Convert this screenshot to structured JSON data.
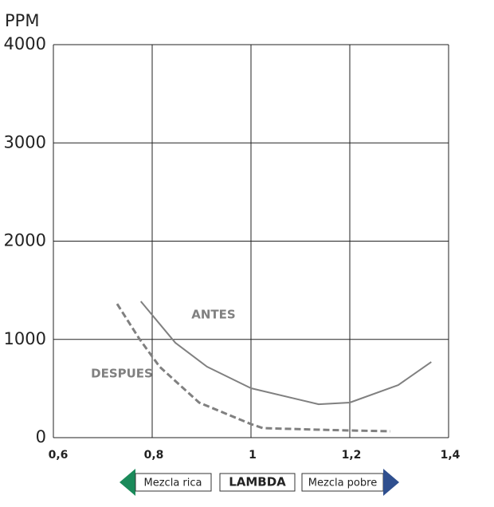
{
  "chart_data": {
    "type": "line",
    "ylabel": "PPM",
    "xlabel": "LAMBDA",
    "annotations": [
      "Mezcla rica",
      "Mezcla pobre"
    ],
    "xlim": [
      0.6,
      1.4
    ],
    "xticks": [
      {
        "value": 0.6,
        "label": "0,6"
      },
      {
        "value": 0.8,
        "label": "0,8"
      },
      1,
      {
        "value": 1.2,
        "label": "1,2"
      },
      {
        "value": 1.4,
        "label": "1,4"
      }
    ],
    "ylim": [
      0,
      4000
    ],
    "yticks": [
      0,
      1000,
      2000,
      3000,
      4000
    ],
    "grid": true,
    "series": [
      {
        "name": "ANTES",
        "color": "#808080",
        "dashed": false,
        "x": [
          0.777,
          0.847,
          0.911,
          1.0,
          1.137,
          1.2,
          1.298,
          1.365
        ],
        "values": [
          1387,
          965,
          722,
          503,
          340,
          357,
          535,
          770
        ]
      },
      {
        "name": "DESPUES",
        "color": "#808080",
        "dashed": true,
        "x": [
          0.729,
          0.774,
          0.815,
          0.895,
          1.0,
          1.024,
          1.137,
          1.2,
          1.282
        ],
        "values": [
          1362,
          1006,
          722,
          357,
          138,
          97,
          81,
          73,
          65
        ]
      }
    ]
  }
}
